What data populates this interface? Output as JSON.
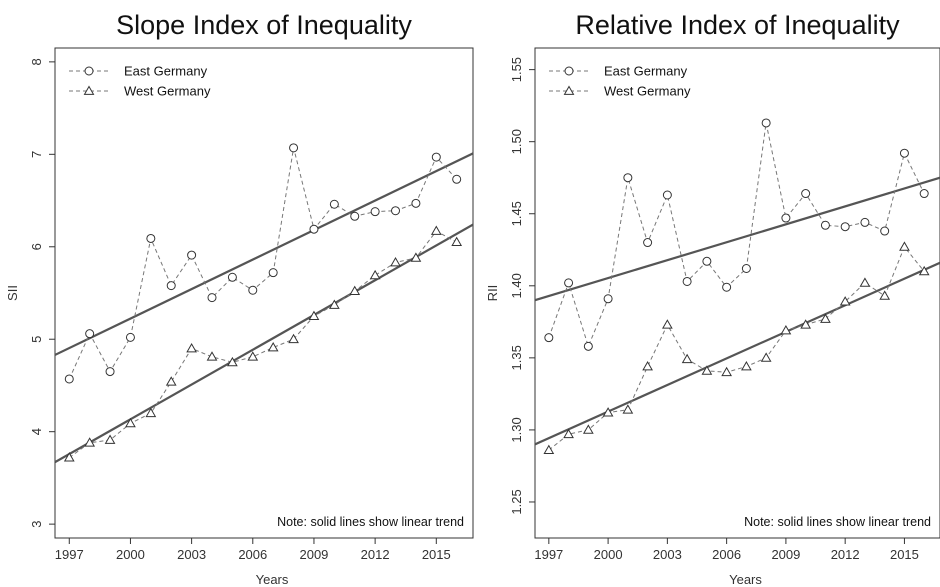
{
  "chart_data": [
    {
      "type": "line",
      "title": "Slope Index of Inequality",
      "xlabel": "Years",
      "ylabel": "SII",
      "note": "Note: solid lines show linear trend",
      "xlim": [
        1996.3,
        2016.8
      ],
      "ylim": [
        2.85,
        8.15
      ],
      "xticks": [
        1997,
        2000,
        2003,
        2006,
        2009,
        2012,
        2015
      ],
      "yticks": [
        3,
        4,
        5,
        6,
        7,
        8
      ],
      "grid": false,
      "legend": "top-left",
      "x": [
        1997,
        1998,
        1999,
        2000,
        2001,
        2002,
        2003,
        2004,
        2005,
        2006,
        2007,
        2008,
        2009,
        2010,
        2011,
        2012,
        2013,
        2014,
        2015,
        2016
      ],
      "series": [
        {
          "name": "East Germany",
          "marker": "circle",
          "values": [
            4.57,
            5.06,
            4.65,
            5.02,
            6.09,
            5.58,
            5.91,
            5.45,
            5.67,
            5.53,
            5.72,
            7.07,
            6.19,
            6.46,
            6.33,
            6.38,
            6.39,
            6.47,
            6.97,
            6.73
          ],
          "trend": [
            4.83,
            7.01
          ]
        },
        {
          "name": "West Germany",
          "marker": "triangle",
          "values": [
            3.72,
            3.88,
            3.91,
            4.09,
            4.2,
            4.54,
            4.9,
            4.81,
            4.75,
            4.81,
            4.91,
            5.0,
            5.25,
            5.37,
            5.52,
            5.69,
            5.83,
            5.88,
            6.17,
            6.05
          ],
          "trend": [
            3.67,
            6.24
          ]
        }
      ]
    },
    {
      "type": "line",
      "title": "Relative Index of Inequality",
      "xlabel": "Years",
      "ylabel": "RII",
      "note": "Note: solid lines show linear trend",
      "xlim": [
        1996.3,
        2016.8
      ],
      "ylim": [
        1.225,
        1.565
      ],
      "xticks": [
        1997,
        2000,
        2003,
        2006,
        2009,
        2012,
        2015
      ],
      "yticks": [
        1.25,
        1.3,
        1.35,
        1.4,
        1.45,
        1.5,
        1.55
      ],
      "grid": false,
      "legend": "top-left",
      "x": [
        1997,
        1998,
        1999,
        2000,
        2001,
        2002,
        2003,
        2004,
        2005,
        2006,
        2007,
        2008,
        2009,
        2010,
        2011,
        2012,
        2013,
        2014,
        2015,
        2016
      ],
      "series": [
        {
          "name": "East Germany",
          "marker": "circle",
          "values": [
            1.364,
            1.402,
            1.358,
            1.391,
            1.475,
            1.43,
            1.463,
            1.403,
            1.417,
            1.399,
            1.412,
            1.513,
            1.447,
            1.464,
            1.442,
            1.441,
            1.444,
            1.438,
            1.492,
            1.464
          ],
          "trend": [
            1.39,
            1.475
          ]
        },
        {
          "name": "West Germany",
          "marker": "triangle",
          "values": [
            1.286,
            1.297,
            1.3,
            1.312,
            1.314,
            1.344,
            1.373,
            1.349,
            1.341,
            1.34,
            1.344,
            1.35,
            1.369,
            1.373,
            1.377,
            1.389,
            1.402,
            1.393,
            1.427,
            1.41
          ],
          "trend": [
            1.29,
            1.416
          ]
        }
      ]
    }
  ]
}
